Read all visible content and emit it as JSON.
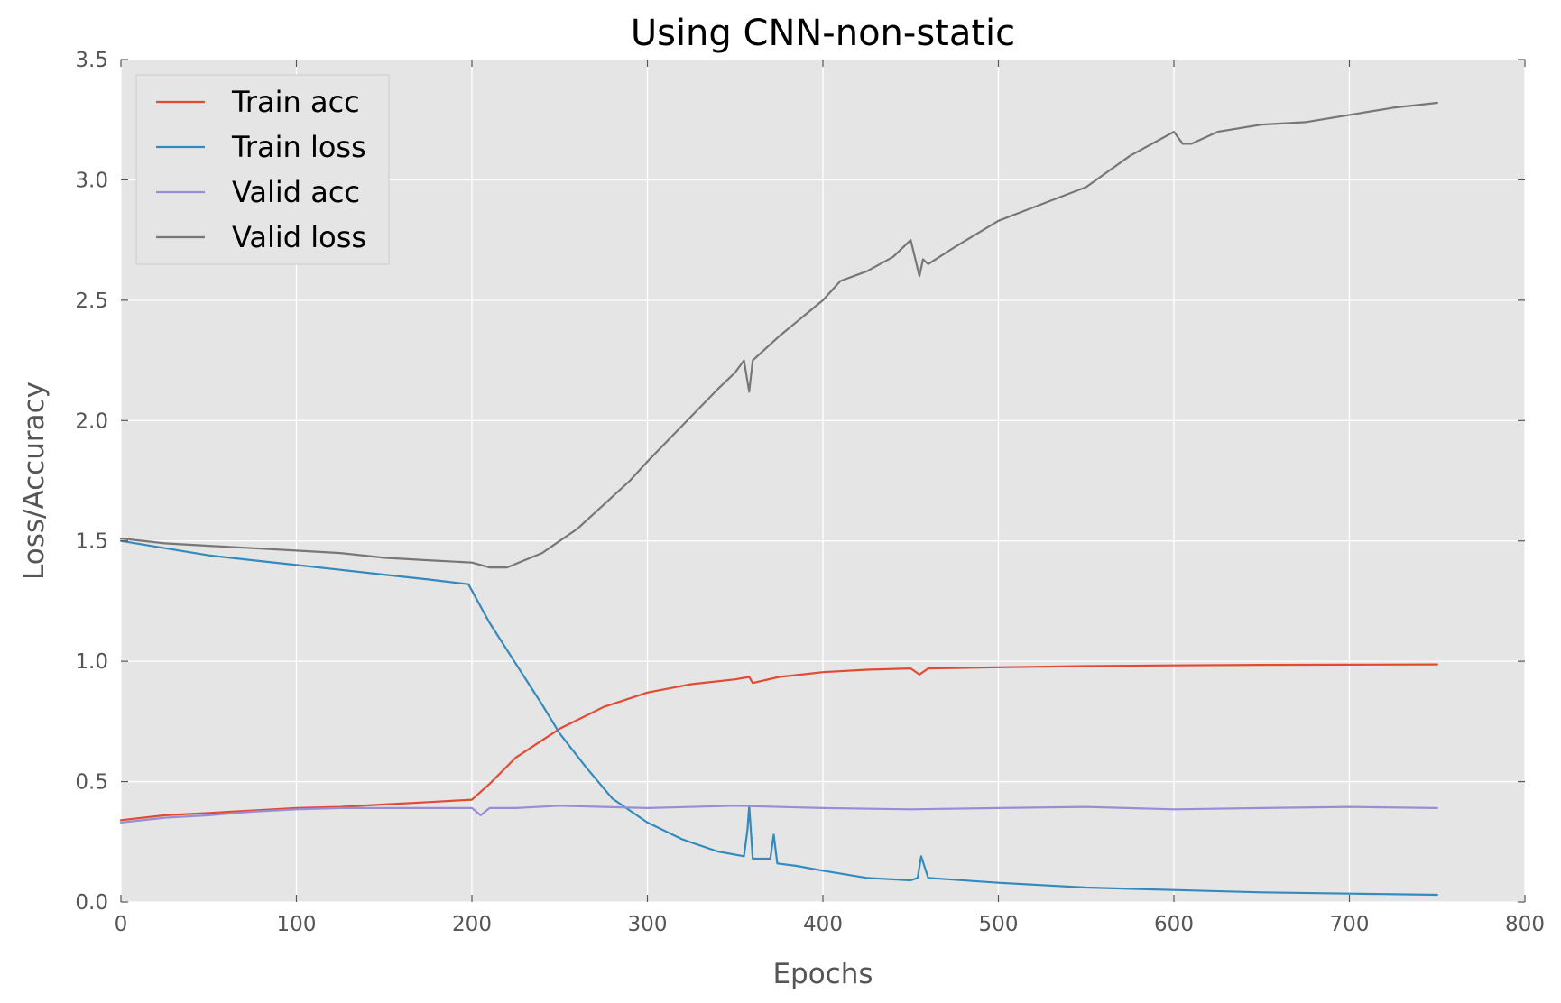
{
  "chart_data": {
    "type": "line",
    "title": "Using CNN-non-static",
    "xlabel": "Epochs",
    "ylabel": "Loss/Accuracy",
    "xlim": [
      0,
      800
    ],
    "ylim": [
      0,
      3.5
    ],
    "xticks": [
      0,
      100,
      200,
      300,
      400,
      500,
      600,
      700,
      800
    ],
    "yticks": [
      0.0,
      0.5,
      1.0,
      1.5,
      2.0,
      2.5,
      3.0,
      3.5
    ],
    "xtick_labels": [
      "0",
      "100",
      "200",
      "300",
      "400",
      "500",
      "600",
      "700",
      "800"
    ],
    "ytick_labels": [
      "0.0",
      "0.5",
      "1.0",
      "1.5",
      "2.0",
      "2.5",
      "3.0",
      "3.5"
    ],
    "grid": true,
    "legend_position": "top-left",
    "background": "#e5e5e5",
    "series": [
      {
        "name": "Train acc",
        "color": "#e24a33",
        "x": [
          0,
          25,
          50,
          75,
          100,
          125,
          150,
          175,
          200,
          210,
          225,
          250,
          275,
          300,
          325,
          350,
          358,
          360,
          375,
          400,
          425,
          450,
          455,
          460,
          500,
          550,
          600,
          650,
          700,
          750
        ],
        "y": [
          0.34,
          0.36,
          0.37,
          0.38,
          0.39,
          0.395,
          0.405,
          0.415,
          0.425,
          0.49,
          0.6,
          0.72,
          0.81,
          0.87,
          0.905,
          0.925,
          0.935,
          0.91,
          0.935,
          0.955,
          0.965,
          0.97,
          0.945,
          0.97,
          0.975,
          0.98,
          0.983,
          0.985,
          0.986,
          0.987
        ]
      },
      {
        "name": "Train loss",
        "color": "#348abd",
        "x": [
          0,
          25,
          50,
          75,
          100,
          125,
          150,
          175,
          198,
          210,
          225,
          240,
          250,
          265,
          280,
          300,
          320,
          340,
          355,
          357,
          358,
          360,
          370,
          372,
          374,
          385,
          400,
          425,
          450,
          454,
          456,
          460,
          500,
          550,
          600,
          650,
          700,
          750
        ],
        "y": [
          1.5,
          1.47,
          1.44,
          1.42,
          1.4,
          1.38,
          1.36,
          1.34,
          1.32,
          1.16,
          0.99,
          0.82,
          0.7,
          0.56,
          0.43,
          0.33,
          0.26,
          0.21,
          0.19,
          0.3,
          0.4,
          0.18,
          0.18,
          0.28,
          0.16,
          0.15,
          0.13,
          0.1,
          0.09,
          0.1,
          0.19,
          0.1,
          0.08,
          0.06,
          0.05,
          0.04,
          0.035,
          0.03
        ]
      },
      {
        "name": "Valid acc",
        "color": "#988ed5",
        "x": [
          0,
          25,
          50,
          75,
          100,
          125,
          150,
          175,
          200,
          205,
          210,
          225,
          250,
          275,
          300,
          350,
          400,
          450,
          500,
          550,
          600,
          650,
          700,
          750
        ],
        "y": [
          0.33,
          0.35,
          0.36,
          0.375,
          0.385,
          0.39,
          0.39,
          0.39,
          0.39,
          0.36,
          0.39,
          0.39,
          0.4,
          0.395,
          0.39,
          0.4,
          0.39,
          0.385,
          0.39,
          0.395,
          0.385,
          0.39,
          0.395,
          0.39
        ]
      },
      {
        "name": "Valid loss",
        "color": "#777777",
        "x": [
          0,
          25,
          50,
          75,
          100,
          125,
          150,
          175,
          200,
          210,
          220,
          230,
          240,
          250,
          260,
          275,
          290,
          300,
          320,
          340,
          350,
          355,
          358,
          360,
          375,
          400,
          410,
          425,
          440,
          450,
          455,
          457,
          460,
          475,
          500,
          525,
          550,
          575,
          600,
          605,
          610,
          625,
          650,
          675,
          700,
          725,
          750
        ],
        "y": [
          1.51,
          1.49,
          1.48,
          1.47,
          1.46,
          1.45,
          1.43,
          1.42,
          1.41,
          1.39,
          1.39,
          1.42,
          1.45,
          1.5,
          1.55,
          1.65,
          1.75,
          1.83,
          1.98,
          2.13,
          2.2,
          2.25,
          2.12,
          2.25,
          2.35,
          2.5,
          2.58,
          2.62,
          2.68,
          2.75,
          2.6,
          2.67,
          2.65,
          2.72,
          2.83,
          2.9,
          2.97,
          3.1,
          3.2,
          3.15,
          3.15,
          3.2,
          3.23,
          3.24,
          3.27,
          3.3,
          3.32
        ]
      }
    ]
  }
}
